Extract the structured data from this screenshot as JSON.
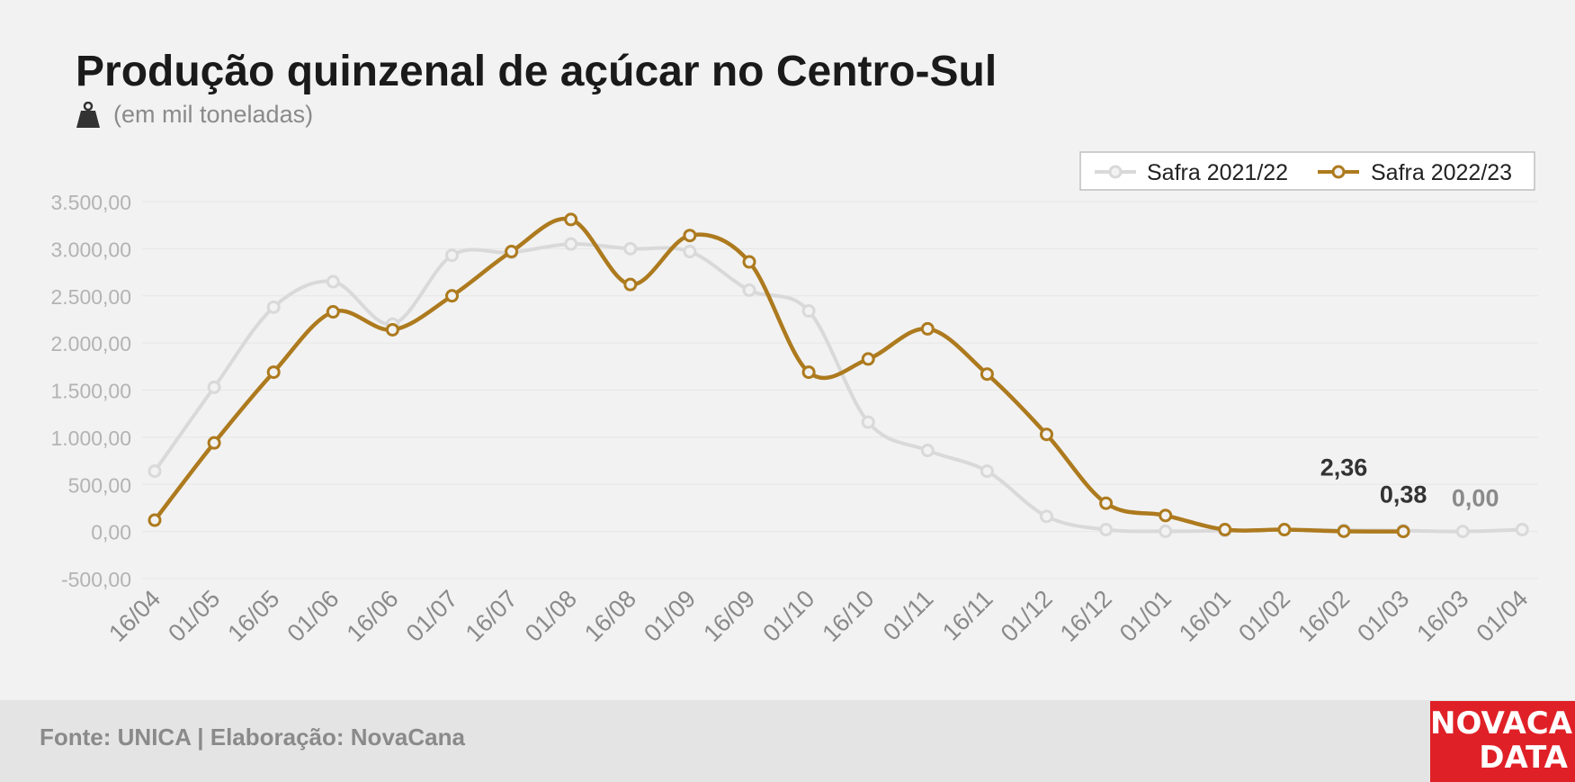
{
  "title": "Produção quinzenal de açúcar no Centro-Sul",
  "subtitle": "(em mil toneladas)",
  "icon": "weight-icon",
  "footer": {
    "source": "Fonte: UNICA | Elaboração: NovaCana"
  },
  "logo": {
    "line1": "NOVACANA",
    "line2": "DATA"
  },
  "colors": {
    "background": "#f2f2f2",
    "series_2021": "#d9d9d9",
    "series_2022": "#ad7a1e",
    "footer": "#e4e4e4",
    "logo": "#e02027"
  },
  "chart_data": {
    "type": "line",
    "title": "Produção quinzenal de açúcar no Centro-Sul",
    "xlabel": "",
    "ylabel": "",
    "categories": [
      "16/04",
      "01/05",
      "16/05",
      "01/06",
      "16/06",
      "01/07",
      "16/07",
      "01/08",
      "16/08",
      "01/09",
      "16/09",
      "01/10",
      "16/10",
      "01/11",
      "16/11",
      "01/12",
      "16/12",
      "01/01",
      "16/01",
      "01/02",
      "16/02",
      "01/03",
      "16/03",
      "01/04"
    ],
    "y_ticks": [
      "3.500,00",
      "3.000,00",
      "2.500,00",
      "2.000,00",
      "1.500,00",
      "1.000,00",
      "500,00",
      "0,00",
      "-500,00"
    ],
    "ylim": [
      -500,
      3500
    ],
    "grid": true,
    "legend_position": "top-right",
    "series": [
      {
        "name": "Safra 2021/22",
        "color": "#d9d9d9",
        "values": [
          640,
          1530,
          2380,
          2650,
          2200,
          2930,
          2960,
          3050,
          3000,
          2970,
          2560,
          2340,
          1160,
          860,
          640,
          160,
          20,
          2,
          10,
          20,
          15,
          10,
          0,
          20
        ]
      },
      {
        "name": "Safra 2022/23",
        "color": "#ad7a1e",
        "values": [
          120,
          940,
          1690,
          2330,
          2140,
          2500,
          2970,
          3310,
          2620,
          3140,
          2860,
          1690,
          1830,
          2150,
          1670,
          1030,
          300,
          170,
          20,
          20,
          2.36,
          0.38,
          null,
          null
        ]
      }
    ],
    "annotations": [
      {
        "text": "2,36",
        "series": "Safra 2022/23",
        "category": "16/02"
      },
      {
        "text": "0,38",
        "series": "Safra 2022/23",
        "category": "01/03"
      },
      {
        "text": "0,00",
        "series": "Safra 2021/22",
        "category": "16/03"
      }
    ]
  }
}
